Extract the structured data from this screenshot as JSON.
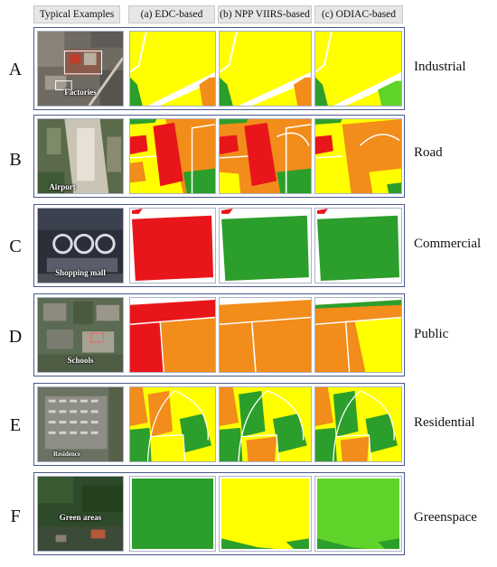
{
  "headers": {
    "examples": "Typical Examples",
    "edc": "(a) EDC-based",
    "npp": "(b) NPP VIIRS-based",
    "odiac": "(c) ODIAC-based"
  },
  "colors": {
    "yellow": "#ffff00",
    "orange": "#f28c1a",
    "red": "#e8161a",
    "green": "#2c9e2c",
    "light_green": "#5fd32a"
  },
  "rows": [
    {
      "letter": "A",
      "example_label": "Factories",
      "category": "Industrial"
    },
    {
      "letter": "B",
      "example_label": "Airport",
      "category": "Road"
    },
    {
      "letter": "C",
      "example_label": "Shopping mall",
      "category": "Commercial"
    },
    {
      "letter": "D",
      "example_label": "Schools",
      "category": "Public"
    },
    {
      "letter": "E",
      "example_label": "Residence",
      "category": "Residential"
    },
    {
      "letter": "F",
      "example_label": "Green areas",
      "category": "Greenspace"
    }
  ]
}
